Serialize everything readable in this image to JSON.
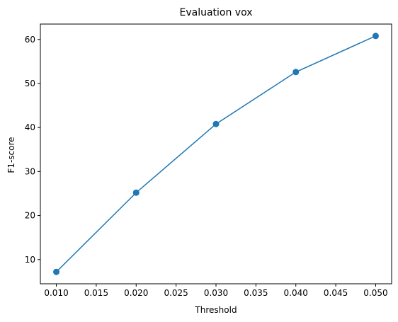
{
  "chart_data": {
    "type": "line",
    "title": "Evaluation vox",
    "xlabel": "Threshold",
    "ylabel": "F1-score",
    "x": [
      0.01,
      0.02,
      0.03,
      0.04,
      0.05
    ],
    "series": [
      {
        "values": [
          7.2,
          25.2,
          40.8,
          52.6,
          60.8
        ],
        "color": "#1f77b4",
        "marker": "circle"
      }
    ],
    "xlim": [
      0.008,
      0.052
    ],
    "ylim": [
      4.5,
      63.5
    ],
    "xticks": [
      0.01,
      0.015,
      0.02,
      0.025,
      0.03,
      0.035,
      0.04,
      0.045,
      0.05
    ],
    "xtick_labels": [
      "0.010",
      "0.015",
      "0.020",
      "0.025",
      "0.030",
      "0.035",
      "0.040",
      "0.045",
      "0.050"
    ],
    "yticks": [
      10,
      20,
      30,
      40,
      50,
      60
    ],
    "ytick_labels": [
      "10",
      "20",
      "30",
      "40",
      "50",
      "60"
    ],
    "grid": false,
    "legend": false
  }
}
